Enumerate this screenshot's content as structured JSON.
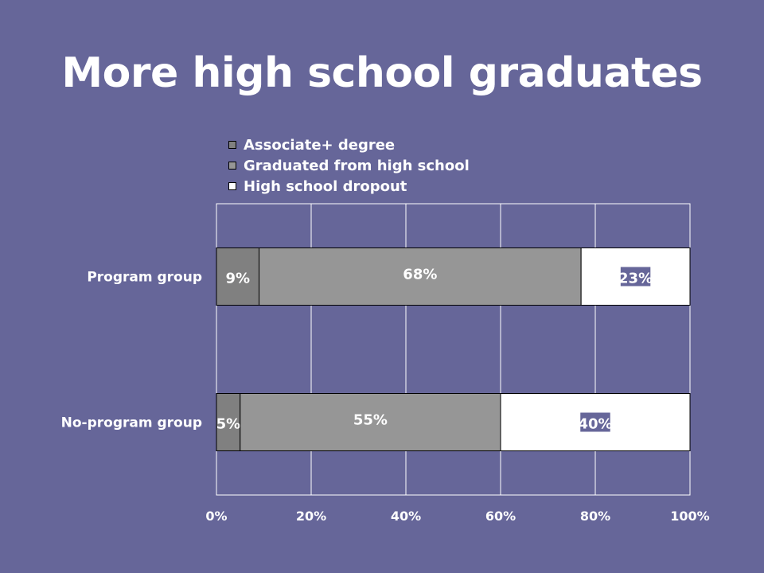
{
  "slide": {
    "title": "More high school graduates"
  },
  "colors": {
    "background": "#666699",
    "associate": "#808080",
    "graduated": "#969696",
    "dropout": "#ffffff",
    "text": "#ffffff"
  },
  "chart_data": {
    "type": "bar",
    "orientation": "horizontal",
    "stacked": "percent",
    "categories": [
      "Program group",
      "No-program group"
    ],
    "series": [
      {
        "name": "Associate+ degree",
        "values": [
          9,
          5
        ],
        "labels": [
          "9%",
          "5%"
        ]
      },
      {
        "name": "Graduated from high school",
        "values": [
          68,
          55
        ],
        "labels": [
          "68%",
          "55%"
        ]
      },
      {
        "name": "High school dropout",
        "values": [
          23,
          40
        ],
        "labels": [
          "23%",
          "40%"
        ]
      }
    ],
    "x_ticks": [
      "0%",
      "20%",
      "40%",
      "60%",
      "80%",
      "100%"
    ],
    "xlim": [
      0,
      100
    ],
    "grid": true,
    "legend_position": "top"
  }
}
